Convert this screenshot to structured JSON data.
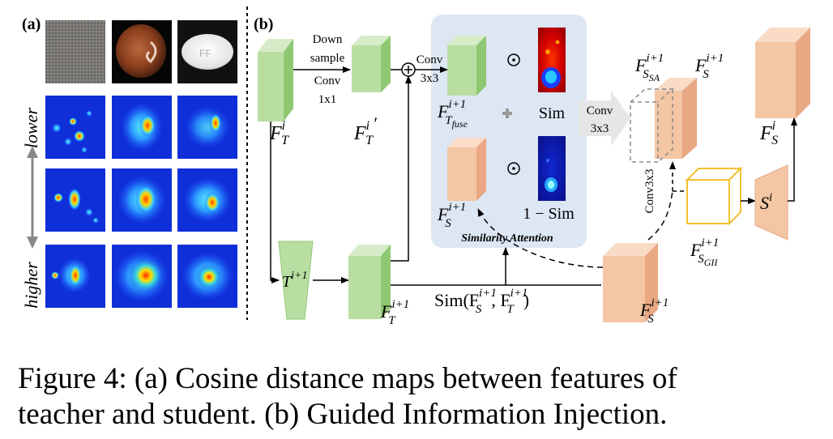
{
  "panel_a": {
    "label": "(a)",
    "axis_lower": "lower",
    "axis_higher": "higher"
  },
  "panel_b": {
    "label": "(b)",
    "down_sample_1": "Down",
    "down_sample_2": "sample",
    "conv1x1_1": "Conv",
    "conv1x1_2": "1x1",
    "conv3x3_top_1": "Conv",
    "conv3x3_top_2": "3x3",
    "conv3x3_mid_1": "Conv",
    "conv3x3_mid_2": "3x3",
    "conv3x3_vert": "Conv3x3",
    "sim": "Sim",
    "one_minus_sim": "1 − Sim",
    "similarity_attention": "Similarity Attention",
    "sim_function": "Sim(F",
    "f_T_i": "F",
    "colors": {
      "green_front": "#b9dea2",
      "green_side": "#8fc873",
      "green_top": "#d6ecc8",
      "orange_front": "#f4c6a4",
      "orange_side": "#e9a883",
      "orange_top": "#fadbc6",
      "yellow": "#f2c12e",
      "attention_bg": "#dde6f3"
    }
  },
  "caption": {
    "line1": "Figure 4: (a) Cosine distance maps between features of",
    "line2": "teacher and student. (b) Guided Information Injection."
  }
}
